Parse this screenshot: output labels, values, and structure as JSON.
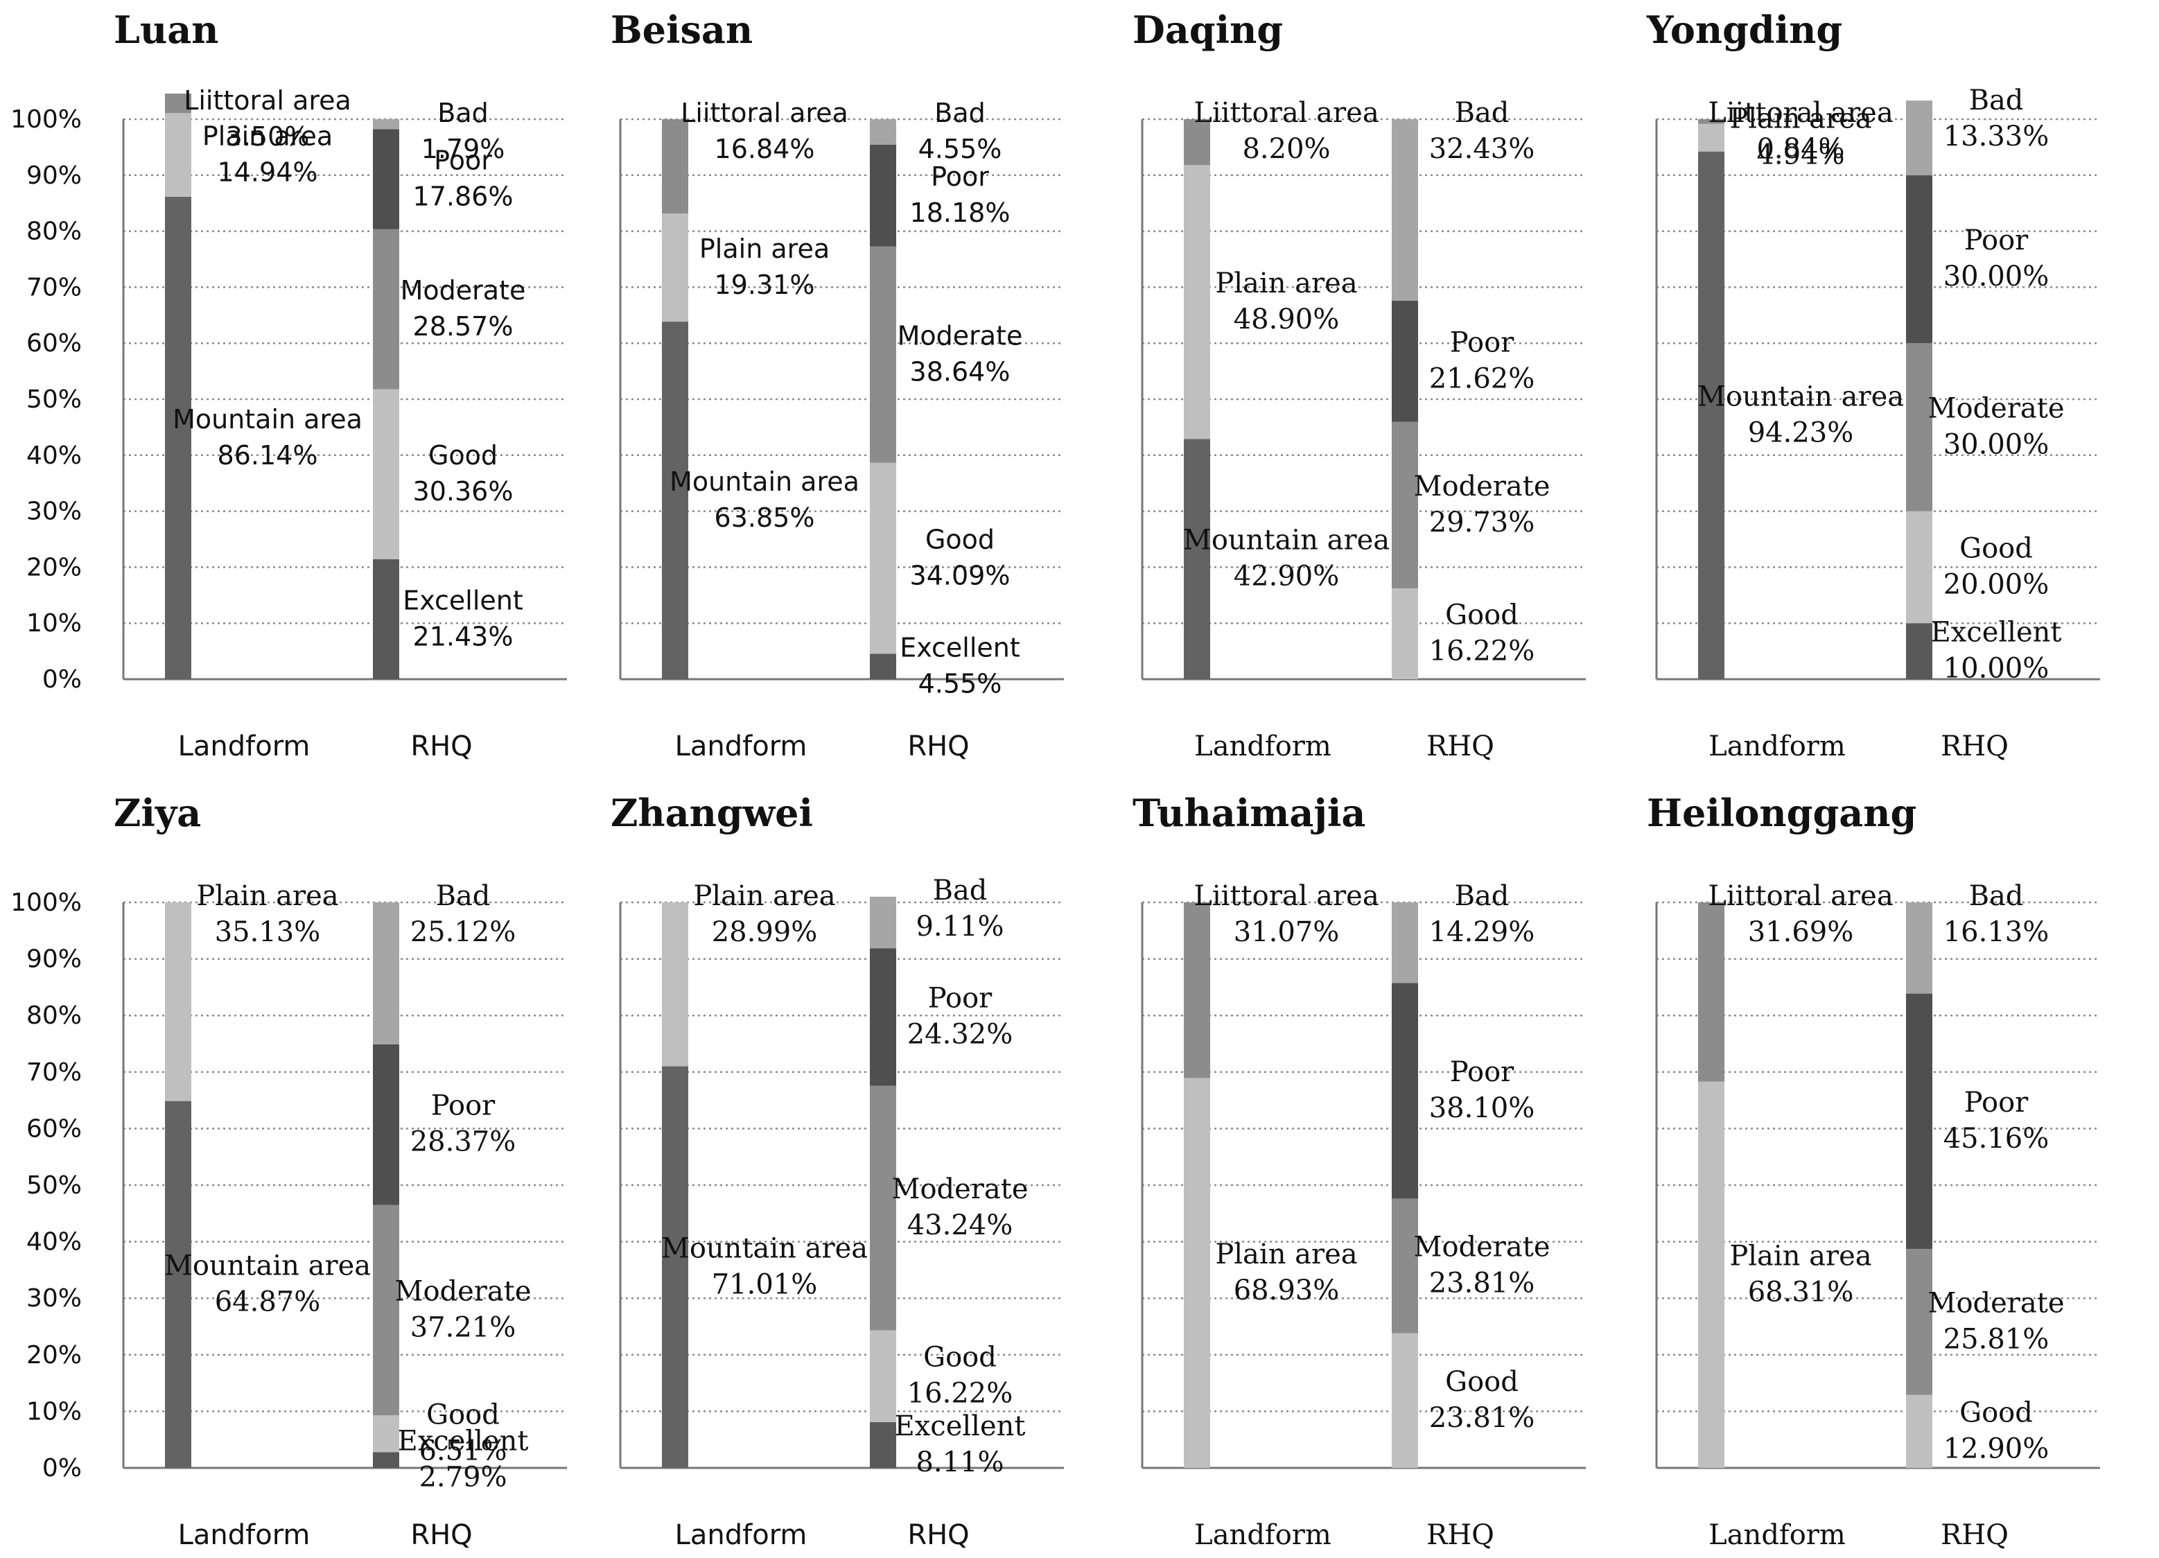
{
  "figure": {
    "categories": [
      "Landform",
      "RHQ"
    ]
  },
  "colors": {
    "Mountain area": "#636363",
    "Plain area": "#bfbfbf",
    "Liittoral area": "#8c8c8c",
    "Excellent": "#595959",
    "Good": "#c0c0c0",
    "Moderate": "#8c8c8c",
    "Poor": "#4f4f4f",
    "Bad": "#a6a6a6",
    "grid": "#8a8a8a",
    "axis": "#777777"
  },
  "chart_data": [
    {
      "type": "bar",
      "stacking": "waterfall",
      "title": "Luan",
      "categories": [
        "Landform",
        "RHQ"
      ],
      "yticks": [
        "0%",
        "10%",
        "20%",
        "30%",
        "40%",
        "50%",
        "60%",
        "70%",
        "80%",
        "90%",
        "100%"
      ],
      "ylim": [
        0,
        100
      ],
      "landform": [
        {
          "name": "Mountain area",
          "value": 86.14,
          "label": "86.14%"
        },
        {
          "name": "Plain area",
          "value": 14.94,
          "label": "14.94%"
        },
        {
          "name": "Liittoral area",
          "value": 3.5,
          "label": "3.50%"
        }
      ],
      "rhq": [
        {
          "name": "Excellent",
          "value": 21.43,
          "label": "21.43%"
        },
        {
          "name": "Good",
          "value": 30.36,
          "label": "30.36%"
        },
        {
          "name": "Moderate",
          "value": 28.57,
          "label": "28.57%"
        },
        {
          "name": "Poor",
          "value": 17.86,
          "label": "17.86%"
        },
        {
          "name": "Bad",
          "value": 1.79,
          "label": "1.79%"
        }
      ]
    },
    {
      "type": "bar",
      "stacking": "waterfall",
      "title": "Beisan",
      "categories": [
        "Landform",
        "RHQ"
      ],
      "ylim": [
        0,
        100
      ],
      "landform": [
        {
          "name": "Mountain area",
          "value": 63.85,
          "label": "63.85%"
        },
        {
          "name": "Plain area",
          "value": 19.31,
          "label": "19.31%"
        },
        {
          "name": "Liittoral area",
          "value": 16.84,
          "label": "16.84%"
        }
      ],
      "rhq": [
        {
          "name": "Excellent",
          "value": 4.55,
          "label": "4.55%"
        },
        {
          "name": "Good",
          "value": 34.09,
          "label": "34.09%"
        },
        {
          "name": "Moderate",
          "value": 38.64,
          "label": "38.64%"
        },
        {
          "name": "Poor",
          "value": 18.18,
          "label": "18.18%"
        },
        {
          "name": "Bad",
          "value": 4.55,
          "label": "4.55%"
        }
      ]
    },
    {
      "type": "bar",
      "stacking": "waterfall",
      "title": "Daqing",
      "categories": [
        "Landform",
        "RHQ"
      ],
      "ylim": [
        0,
        100
      ],
      "landform": [
        {
          "name": "Mountain area",
          "value": 42.9,
          "label": "42.90%"
        },
        {
          "name": "Plain area",
          "value": 48.9,
          "label": "48.90%"
        },
        {
          "name": "Liittoral area",
          "value": 8.2,
          "label": "8.20%"
        }
      ],
      "rhq": [
        {
          "name": "Good",
          "value": 16.22,
          "label": "16.22%"
        },
        {
          "name": "Moderate",
          "value": 29.73,
          "label": "29.73%"
        },
        {
          "name": "Poor",
          "value": 21.62,
          "label": "21.62%"
        },
        {
          "name": "Bad",
          "value": 32.43,
          "label": "32.43%"
        }
      ]
    },
    {
      "type": "bar",
      "stacking": "waterfall",
      "title": "Yongding",
      "categories": [
        "Landform",
        "RHQ"
      ],
      "ylim": [
        0,
        100
      ],
      "landform": [
        {
          "name": "Mountain area",
          "value": 94.23,
          "label": "94.23%"
        },
        {
          "name": "Plain area",
          "value": 4.94,
          "label": "4.94%"
        },
        {
          "name": "Liittoral area",
          "value": 0.84,
          "label": "0.84%"
        }
      ],
      "rhq": [
        {
          "name": "Excellent",
          "value": 10.0,
          "label": "10.00%"
        },
        {
          "name": "Good",
          "value": 20.0,
          "label": "20.00%"
        },
        {
          "name": "Moderate",
          "value": 30.0,
          "label": "30.00%"
        },
        {
          "name": "Poor",
          "value": 30.0,
          "label": "30.00%"
        },
        {
          "name": "Bad",
          "value": 13.33,
          "label": "13.33%"
        }
      ]
    },
    {
      "type": "bar",
      "stacking": "waterfall",
      "title": "Ziya",
      "categories": [
        "Landform",
        "RHQ"
      ],
      "yticks": [
        "0%",
        "10%",
        "20%",
        "30%",
        "40%",
        "50%",
        "60%",
        "70%",
        "80%",
        "90%",
        "100%"
      ],
      "ylim": [
        0,
        100
      ],
      "landform": [
        {
          "name": "Mountain area",
          "value": 64.87,
          "label": "64.87%"
        },
        {
          "name": "Plain area",
          "value": 35.13,
          "label": "35.13%"
        }
      ],
      "rhq": [
        {
          "name": "Excellent",
          "value": 2.79,
          "label": "2.79%"
        },
        {
          "name": "Good",
          "value": 6.51,
          "label": "6.51%"
        },
        {
          "name": "Moderate",
          "value": 37.21,
          "label": "37.21%"
        },
        {
          "name": "Poor",
          "value": 28.37,
          "label": "28.37%"
        },
        {
          "name": "Bad",
          "value": 25.12,
          "label": "25.12%"
        }
      ]
    },
    {
      "type": "bar",
      "stacking": "waterfall",
      "title": "Zhangwei",
      "categories": [
        "Landform",
        "RHQ"
      ],
      "ylim": [
        0,
        100
      ],
      "landform": [
        {
          "name": "Mountain area",
          "value": 71.01,
          "label": "71.01%"
        },
        {
          "name": "Plain area",
          "value": 28.99,
          "label": "28.99%"
        }
      ],
      "rhq": [
        {
          "name": "Excellent",
          "value": 8.11,
          "label": "8.11%"
        },
        {
          "name": "Good",
          "value": 16.22,
          "label": "16.22%"
        },
        {
          "name": "Moderate",
          "value": 43.24,
          "label": "43.24%"
        },
        {
          "name": "Poor",
          "value": 24.32,
          "label": "24.32%"
        },
        {
          "name": "Bad",
          "value": 9.11,
          "label": "9.11%"
        }
      ]
    },
    {
      "type": "bar",
      "stacking": "waterfall",
      "title": "Tuhaimajia",
      "categories": [
        "Landform",
        "RHQ"
      ],
      "ylim": [
        0,
        100
      ],
      "landform": [
        {
          "name": "Plain area",
          "value": 68.93,
          "label": "68.93%"
        },
        {
          "name": "Liittoral area",
          "value": 31.07,
          "label": "31.07%"
        }
      ],
      "rhq": [
        {
          "name": "Good",
          "value": 23.81,
          "label": "23.81%"
        },
        {
          "name": "Moderate",
          "value": 23.81,
          "label": "23.81%"
        },
        {
          "name": "Poor",
          "value": 38.1,
          "label": "38.10%"
        },
        {
          "name": "Bad",
          "value": 14.29,
          "label": "14.29%"
        }
      ]
    },
    {
      "type": "bar",
      "stacking": "waterfall",
      "title": "Heilonggang",
      "categories": [
        "Landform",
        "RHQ"
      ],
      "ylim": [
        0,
        100
      ],
      "landform": [
        {
          "name": "Plain area",
          "value": 68.31,
          "label": "68.31%"
        },
        {
          "name": "Liittoral area",
          "value": 31.69,
          "label": "31.69%"
        }
      ],
      "rhq": [
        {
          "name": "Good",
          "value": 12.9,
          "label": "12.90%"
        },
        {
          "name": "Moderate",
          "value": 25.81,
          "label": "25.81%"
        },
        {
          "name": "Poor",
          "value": 45.16,
          "label": "45.16%"
        },
        {
          "name": "Bad",
          "value": 16.13,
          "label": "16.13%"
        }
      ]
    }
  ]
}
